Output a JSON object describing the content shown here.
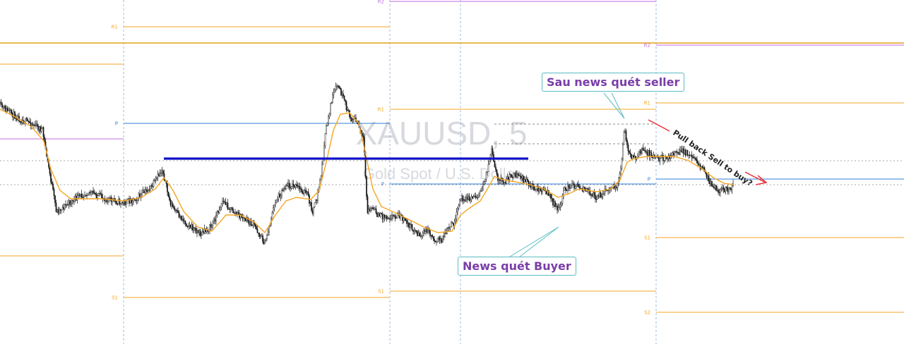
{
  "symbol": "XAUUSD, 5",
  "symbol_description": "Gold Spot / U.S. Dollar",
  "annotations": {
    "news_buyer": "News quét Buyer",
    "news_seller": "Sau news quét seller",
    "pullback": "Pull back Sell to buy?"
  },
  "colors": {
    "candle": "#111111",
    "moving_average": "#f5a623",
    "pivot_r": "#f5a623",
    "pivot_s": "#f5a623",
    "pivot_p": "#2f7fd8",
    "pivot_r2": "#c36be0",
    "resistance_line": "#1010c8",
    "arrow": "#e8303a",
    "callout_border": "#5bbcc3",
    "callout_text": "#7a3ea8"
  },
  "chart_data": {
    "type": "candlestick",
    "title": "XAUUSD, 5",
    "subtitle": "Gold Spot / U.S. Dollar",
    "xlabel": "",
    "ylabel": "",
    "ylim": [
      0,
      488
    ],
    "grid": true,
    "series": [
      {
        "name": "",
        "kind": "price",
        "path": [
          [
            0,
            150
          ],
          [
            15,
            160
          ],
          [
            30,
            170
          ],
          [
            45,
            175
          ],
          [
            60,
            185
          ],
          [
            72,
            255
          ],
          [
            80,
            300
          ],
          [
            95,
            290
          ],
          [
            110,
            280
          ],
          [
            125,
            272
          ],
          [
            145,
            280
          ],
          [
            160,
            285
          ],
          [
            175,
            288
          ],
          [
            195,
            280
          ],
          [
            215,
            265
          ],
          [
            230,
            240
          ],
          [
            240,
            285
          ],
          [
            248,
            300
          ],
          [
            265,
            318
          ],
          [
            285,
            332
          ],
          [
            300,
            320
          ],
          [
            315,
            285
          ],
          [
            330,
            300
          ],
          [
            345,
            310
          ],
          [
            360,
            320
          ],
          [
            375,
            345
          ],
          [
            390,
            285
          ],
          [
            405,
            262
          ],
          [
            420,
            265
          ],
          [
            435,
            275
          ],
          [
            442,
            300
          ],
          [
            448,
            285
          ],
          [
            455,
            245
          ],
          [
            462,
            180
          ],
          [
            470,
            140
          ],
          [
            478,
            120
          ],
          [
            486,
            140
          ],
          [
            495,
            165
          ],
          [
            505,
            172
          ],
          [
            515,
            200
          ],
          [
            520,
            300
          ],
          [
            527,
            295
          ],
          [
            535,
            305
          ],
          [
            550,
            308
          ],
          [
            565,
            305
          ],
          [
            580,
            320
          ],
          [
            595,
            335
          ],
          [
            605,
            325
          ],
          [
            615,
            340
          ],
          [
            625,
            340
          ],
          [
            635,
            325
          ],
          [
            645,
            312
          ],
          [
            652,
            280
          ],
          [
            665,
            282
          ],
          [
            680,
            275
          ],
          [
            690,
            240
          ],
          [
            696,
            215
          ],
          [
            703,
            250
          ],
          [
            712,
            260
          ],
          [
            722,
            250
          ],
          [
            730,
            248
          ],
          [
            745,
            258
          ],
          [
            760,
            268
          ],
          [
            775,
            272
          ],
          [
            790,
            300
          ],
          [
            800,
            268
          ],
          [
            815,
            262
          ],
          [
            830,
            270
          ],
          [
            845,
            280
          ],
          [
            860,
            270
          ],
          [
            875,
            262
          ],
          [
            880,
            230
          ],
          [
            884,
            178
          ],
          [
            890,
            220
          ],
          [
            900,
            225
          ],
          [
            910,
            212
          ],
          [
            920,
            218
          ],
          [
            935,
            225
          ],
          [
            950,
            220
          ],
          [
            965,
            215
          ],
          [
            980,
            220
          ],
          [
            995,
            240
          ],
          [
            1005,
            258
          ],
          [
            1015,
            268
          ],
          [
            1025,
            270
          ],
          [
            1035,
            268
          ],
          [
            1038,
            262
          ]
        ]
      },
      {
        "name": "",
        "kind": "moving_average",
        "path": [
          [
            0,
            155
          ],
          [
            20,
            165
          ],
          [
            45,
            180
          ],
          [
            62,
            200
          ],
          [
            72,
            240
          ],
          [
            85,
            270
          ],
          [
            100,
            282
          ],
          [
            120,
            282
          ],
          [
            145,
            282
          ],
          [
            175,
            285
          ],
          [
            200,
            280
          ],
          [
            220,
            268
          ],
          [
            232,
            252
          ],
          [
            245,
            270
          ],
          [
            260,
            300
          ],
          [
            280,
            322
          ],
          [
            300,
            328
          ],
          [
            320,
            305
          ],
          [
            340,
            305
          ],
          [
            360,
            315
          ],
          [
            375,
            330
          ],
          [
            390,
            305
          ],
          [
            405,
            285
          ],
          [
            420,
            280
          ],
          [
            440,
            283
          ],
          [
            452,
            270
          ],
          [
            462,
            230
          ],
          [
            472,
            185
          ],
          [
            482,
            162
          ],
          [
            495,
            160
          ],
          [
            508,
            175
          ],
          [
            518,
            220
          ],
          [
            528,
            268
          ],
          [
            540,
            293
          ],
          [
            560,
            302
          ],
          [
            580,
            312
          ],
          [
            600,
            322
          ],
          [
            620,
            330
          ],
          [
            640,
            328
          ],
          [
            652,
            305
          ],
          [
            665,
            295
          ],
          [
            680,
            285
          ],
          [
            692,
            265
          ],
          [
            700,
            250
          ],
          [
            712,
            255
          ],
          [
            730,
            258
          ],
          [
            750,
            262
          ],
          [
            770,
            268
          ],
          [
            790,
            280
          ],
          [
            805,
            275
          ],
          [
            820,
            268
          ],
          [
            845,
            272
          ],
          [
            865,
            268
          ],
          [
            878,
            255
          ],
          [
            888,
            230
          ],
          [
            898,
            225
          ],
          [
            915,
            222
          ],
          [
            935,
            222
          ],
          [
            955,
            222
          ],
          [
            975,
            228
          ],
          [
            995,
            240
          ],
          [
            1010,
            252
          ],
          [
            1025,
            260
          ],
          [
            1038,
            262
          ]
        ]
      }
    ],
    "pivot_levels": [
      {
        "label": "R1",
        "name": "R1",
        "x_from": 175,
        "x_to": 552,
        "y": 38
      },
      {
        "label": "",
        "name": "R1",
        "x_from": 0,
        "x_to": 175,
        "y": 91
      },
      {
        "label": "P",
        "name": "P",
        "x_from": 175,
        "x_to": 552,
        "y": 175
      },
      {
        "label": "S1",
        "name": "S1",
        "x_from": 175,
        "x_to": 552,
        "y": 422
      },
      {
        "label": "",
        "name": "S1",
        "x_from": 0,
        "x_to": 175,
        "y": 363
      },
      {
        "label": "R2",
        "name": "R2",
        "x_from": 552,
        "x_to": 929,
        "y": 2
      },
      {
        "label": "R1",
        "name": "R1",
        "x_from": 552,
        "x_to": 929,
        "y": 155
      },
      {
        "label": "P",
        "name": "P",
        "x_from": 552,
        "x_to": 929,
        "y": 261
      },
      {
        "label": "S1",
        "name": "S1",
        "x_from": 552,
        "x_to": 929,
        "y": 413
      },
      {
        "label": "R2",
        "name": "R2",
        "x_from": 929,
        "x_to": 1280,
        "y": 64
      },
      {
        "label": "R1",
        "name": "R1",
        "x_from": 929,
        "x_to": 1280,
        "y": 146
      },
      {
        "label": "P",
        "name": "P",
        "x_from": 929,
        "x_to": 1280,
        "y": 254
      },
      {
        "label": "S1",
        "name": "S1",
        "x_from": 929,
        "x_to": 1280,
        "y": 337
      },
      {
        "label": "S2",
        "name": "S2",
        "x_from": 929,
        "x_to": 1280,
        "y": 443
      }
    ],
    "horizontal_lines": [
      {
        "name": "long-term-level",
        "y": 61
      },
      {
        "name": "resistance",
        "x_from": 232,
        "x_to": 748,
        "y": 225
      },
      {
        "name": "dashed-top",
        "x_from": 700,
        "x_to": 929,
        "y": 176
      },
      {
        "name": "dashed-mid",
        "x_from": 700,
        "x_to": 929,
        "y": 204
      }
    ],
    "session_breaks": [
      175,
      552,
      652,
      929
    ]
  }
}
